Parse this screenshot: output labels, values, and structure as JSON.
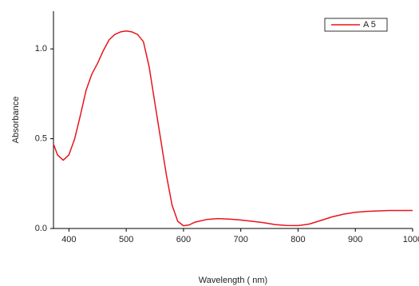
{
  "chart_data": {
    "type": "line",
    "x_label": "Wavelength ( nm)",
    "y_label": "Absorbance",
    "xlim": [
      373,
      1000
    ],
    "ylim": [
      0,
      1.21
    ],
    "xticks": [
      400,
      500,
      600,
      700,
      800,
      900,
      1000
    ],
    "yticks": [
      {
        "value": 0,
        "label": "0.0"
      },
      0.5,
      {
        "value": 1,
        "label": "1.0"
      }
    ],
    "legend": "upper right",
    "x": [
      373,
      380,
      390,
      400,
      410,
      420,
      430,
      440,
      450,
      460,
      470,
      480,
      490,
      500,
      510,
      520,
      530,
      540,
      550,
      560,
      570,
      580,
      590,
      600,
      610,
      620,
      640,
      660,
      680,
      700,
      720,
      740,
      760,
      780,
      800,
      820,
      840,
      860,
      880,
      900,
      920,
      940,
      960,
      980,
      1000
    ],
    "series": [
      {
        "name": "A 5",
        "color": "#e8141c",
        "values": [
          0.47,
          0.41,
          0.38,
          0.41,
          0.5,
          0.63,
          0.77,
          0.86,
          0.92,
          0.99,
          1.05,
          1.08,
          1.095,
          1.1,
          1.095,
          1.08,
          1.04,
          0.9,
          0.7,
          0.5,
          0.3,
          0.13,
          0.04,
          0.015,
          0.02,
          0.035,
          0.05,
          0.055,
          0.052,
          0.047,
          0.04,
          0.032,
          0.022,
          0.017,
          0.016,
          0.025,
          0.045,
          0.065,
          0.08,
          0.09,
          0.095,
          0.098,
          0.1,
          0.1,
          0.1
        ]
      }
    ]
  }
}
